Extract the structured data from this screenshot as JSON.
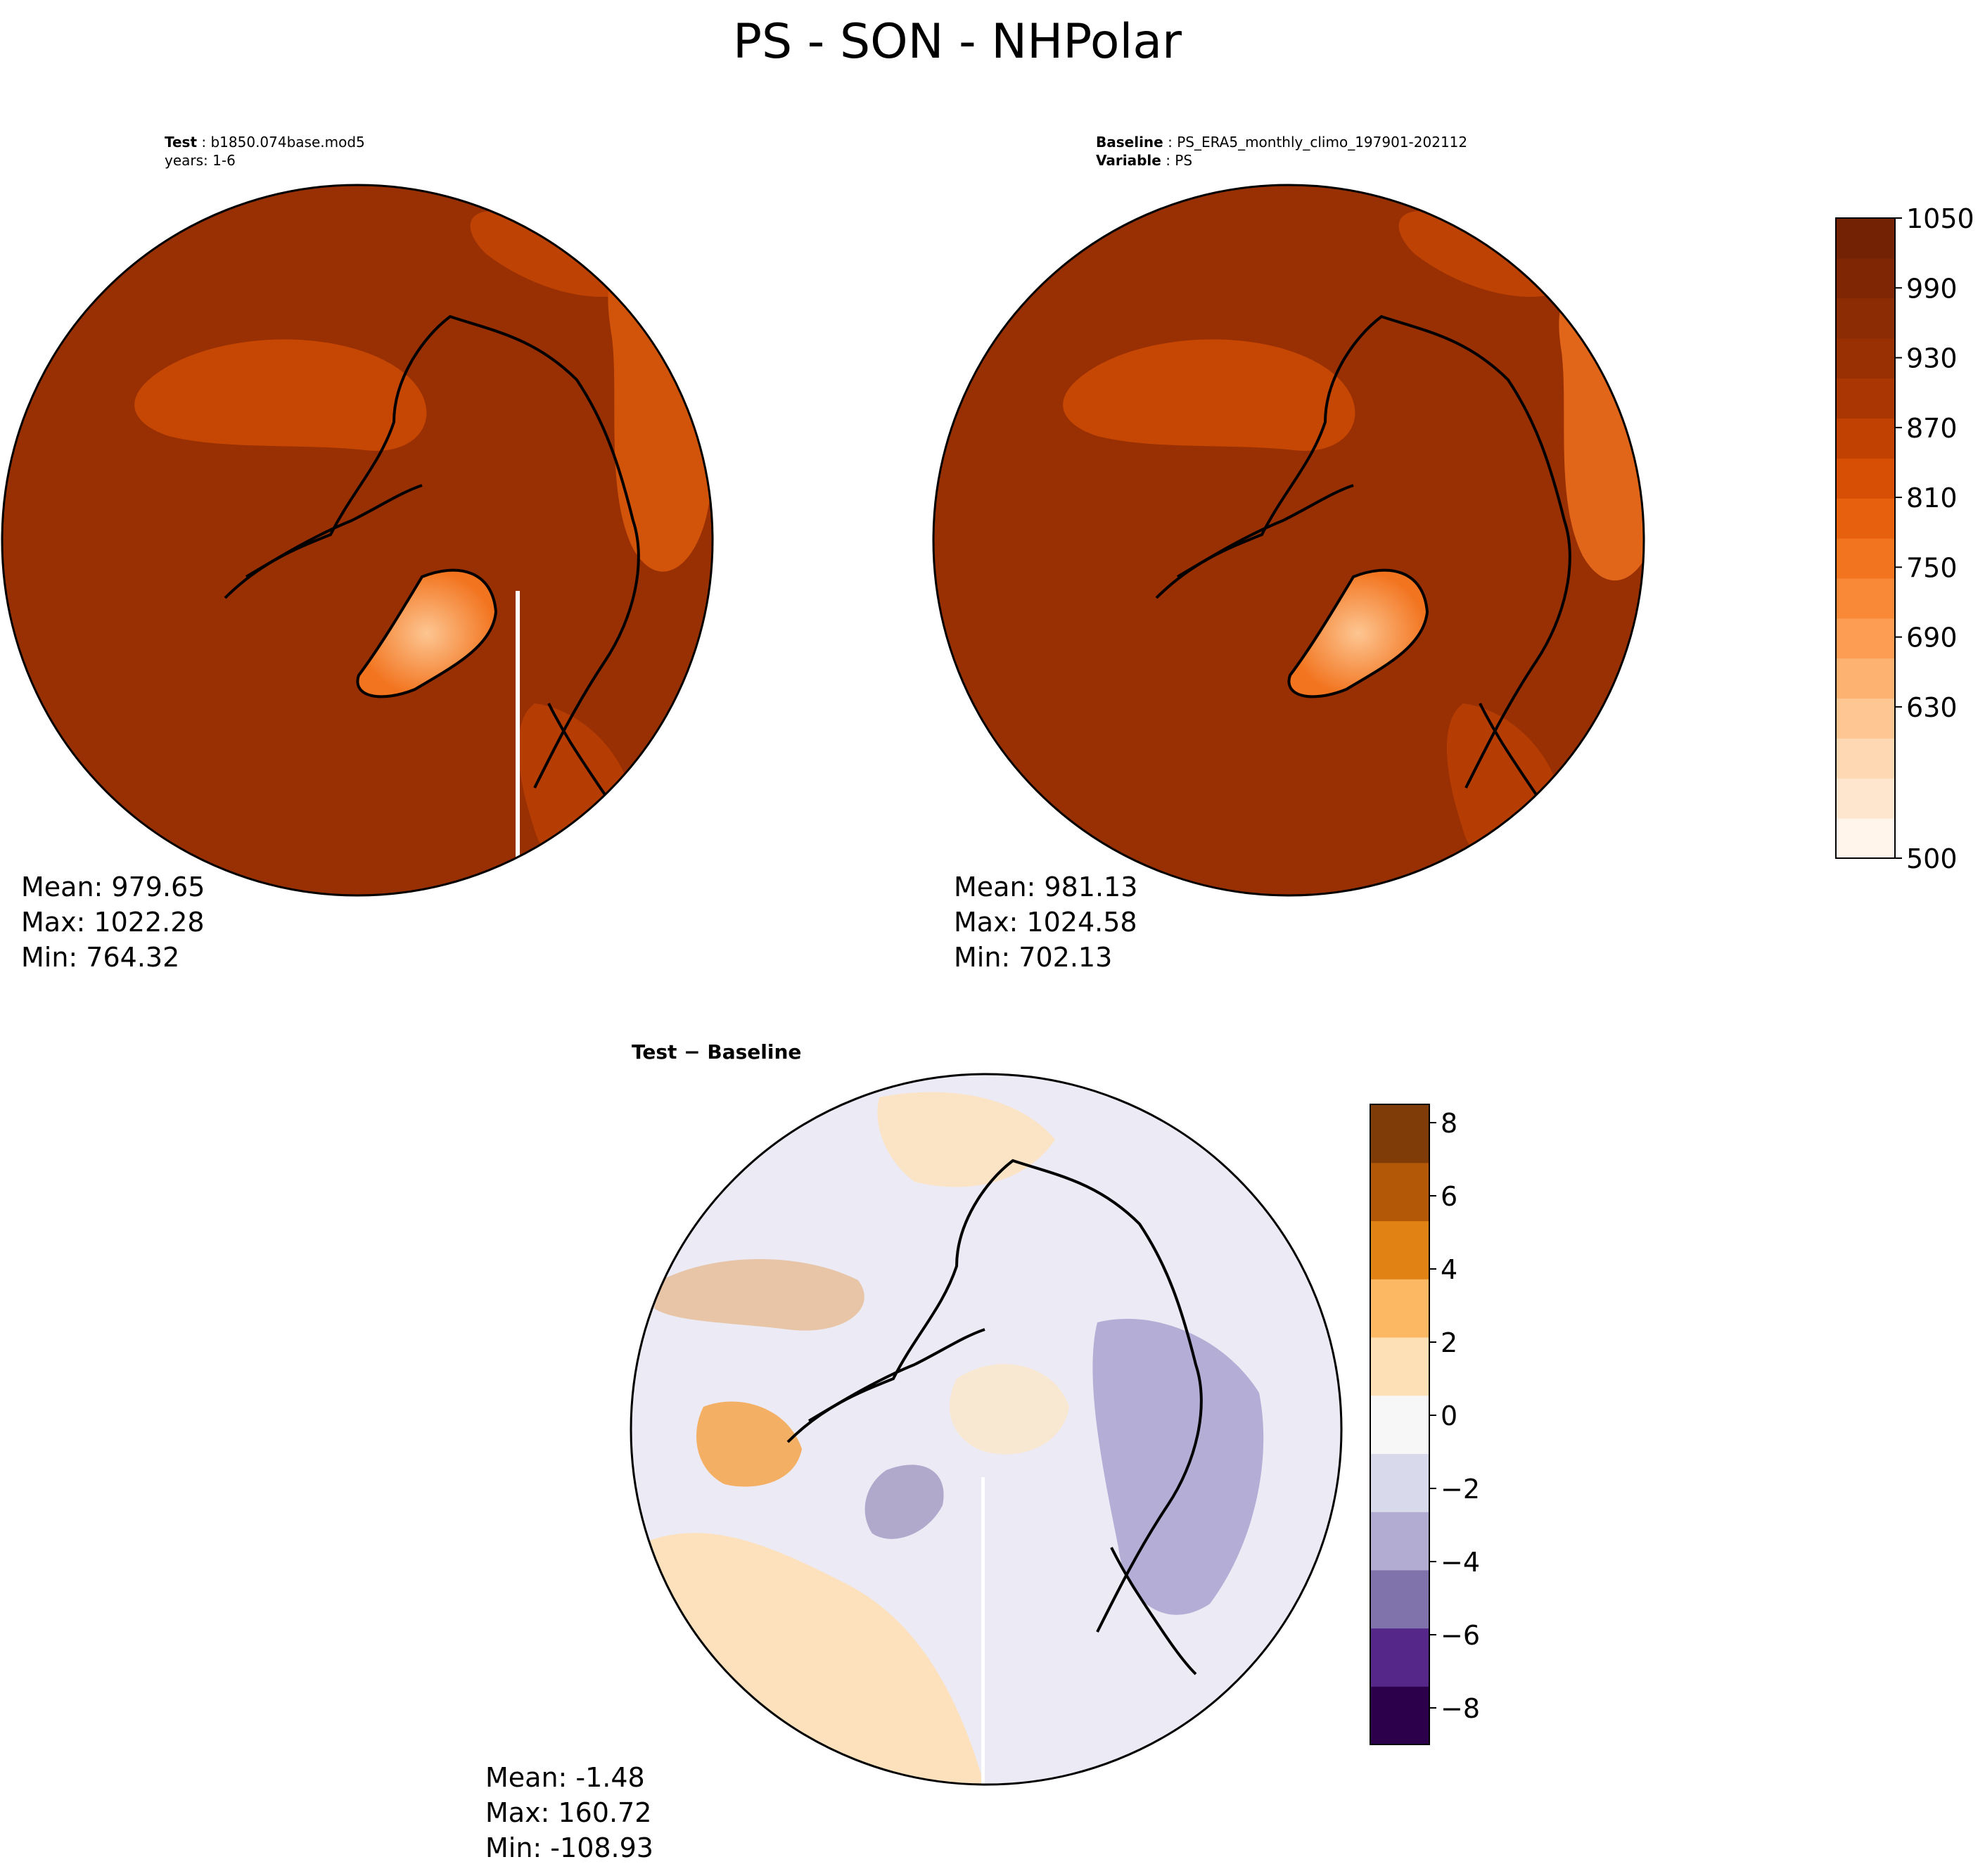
{
  "figure": {
    "title": "PS - SON - NHPolar"
  },
  "panels": {
    "test": {
      "label_key": "Test",
      "label_value": "b1850.074base.mod5",
      "years_text": "years: 1-6",
      "stats": {
        "mean": "Mean: 979.65",
        "max": "Max: 1022.28",
        "min": "Min: 764.32"
      }
    },
    "baseline": {
      "label_key": "Baseline",
      "label_value": "PS_ERA5_monthly_climo_197901-202112",
      "variable_key": "Variable",
      "variable_value": "PS",
      "stats": {
        "mean": "Mean: 981.13",
        "max": "Max: 1024.58",
        "min": "Min: 702.13"
      }
    },
    "diff": {
      "title": "Test − Baseline",
      "stats": {
        "mean": "Mean: -1.48",
        "max": "Max: 160.72",
        "min": "Min: -108.93"
      }
    }
  },
  "colors": {
    "field_main": "#993003",
    "ocean_diff": "#eceaf4",
    "coast": "#000000"
  },
  "chart_data": [
    {
      "type": "heatmap",
      "name": "test_map",
      "projection": "north-polar-stereographic",
      "variable": "PS",
      "season": "SON",
      "mean": 979.65,
      "max": 1022.28,
      "min": 764.32
    },
    {
      "type": "heatmap",
      "name": "baseline_map",
      "projection": "north-polar-stereographic",
      "variable": "PS",
      "season": "SON",
      "mean": 981.13,
      "max": 1024.58,
      "min": 702.13
    },
    {
      "type": "heatmap",
      "name": "diff_map",
      "projection": "north-polar-stereographic",
      "variable": "PS",
      "mean": -1.48,
      "max": 160.72,
      "min": -108.93
    },
    {
      "type": "colorbar",
      "name": "main_colorbar",
      "range": [
        500,
        1050
      ],
      "ticks": [
        "500",
        "630",
        "690",
        "750",
        "810",
        "870",
        "930",
        "990",
        "1050"
      ],
      "tick_values": [
        500,
        630,
        690,
        750,
        810,
        870,
        930,
        990,
        1050
      ],
      "levels": [
        500,
        600,
        630,
        660,
        690,
        720,
        750,
        780,
        810,
        840,
        870,
        900,
        930,
        960,
        990,
        1020,
        1050
      ],
      "colors": [
        "#fff5eb",
        "#fee6ce",
        "#fdd8b2",
        "#fdc692",
        "#fdb272",
        "#fd9d53",
        "#f98937",
        "#f2741f",
        "#e6600e",
        "#d64f05",
        "#c14103",
        "#aa3703",
        "#993003",
        "#8c2c04",
        "#7f2704",
        "#732304"
      ]
    },
    {
      "type": "colorbar",
      "name": "diff_colorbar",
      "range": [
        -9,
        8.5
      ],
      "ticks": [
        "−8",
        "−6",
        "−4",
        "−2",
        "0",
        "2",
        "4",
        "6",
        "8"
      ],
      "tick_values": [
        -8,
        -6,
        -4,
        -2,
        0,
        2,
        4,
        6,
        8
      ],
      "colors": [
        "#2d004b",
        "#542788",
        "#8073ac",
        "#b2abd2",
        "#d8daeb",
        "#f7f7f7",
        "#fee0b6",
        "#fdb863",
        "#e08214",
        "#b35806",
        "#7f3b08"
      ]
    }
  ]
}
